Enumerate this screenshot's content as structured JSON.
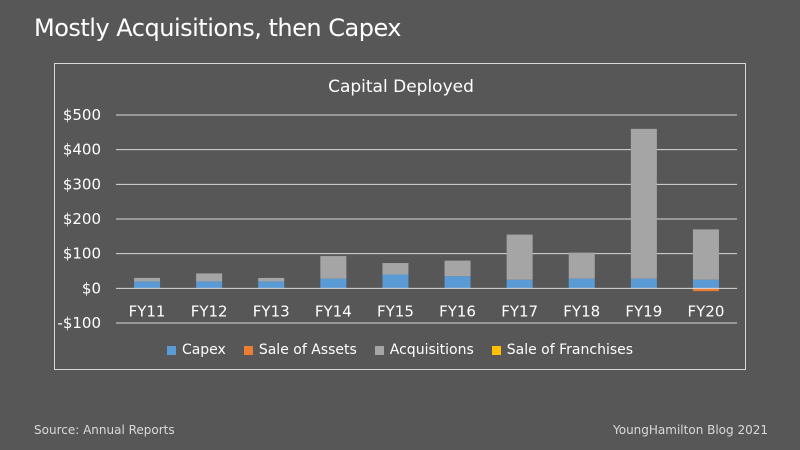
{
  "slide": {
    "title": "Mostly Acquisitions, then Capex",
    "source": "Source: Annual Reports",
    "credit": "YoungHamilton Blog 2021"
  },
  "chart_data": {
    "type": "bar",
    "stacked": true,
    "title": "Capital Deployed",
    "xlabel": "",
    "ylabel": "",
    "ylim": [
      -100,
      500
    ],
    "yticks": [
      -100,
      0,
      100,
      200,
      300,
      400,
      500
    ],
    "ytick_labels": [
      "-$100",
      "$0",
      "$100",
      "$200",
      "$300",
      "$400",
      "$500"
    ],
    "grid": true,
    "legend_position": "bottom",
    "categories": [
      "FY11",
      "FY12",
      "FY13",
      "FY14",
      "FY15",
      "FY16",
      "FY17",
      "FY18",
      "FY19",
      "FY20"
    ],
    "series": [
      {
        "name": "Capex",
        "color": "#5b9bd5",
        "values": [
          20,
          20,
          20,
          28,
          40,
          35,
          25,
          28,
          28,
          25
        ]
      },
      {
        "name": "Sale of Assets",
        "color": "#ed7d31",
        "values": [
          0,
          0,
          0,
          0,
          0,
          0,
          0,
          0,
          0,
          -8
        ]
      },
      {
        "name": "Acquisitions",
        "color": "#a5a5a5",
        "values": [
          10,
          23,
          10,
          65,
          33,
          45,
          130,
          75,
          432,
          145
        ]
      },
      {
        "name": "Sale of Franchises",
        "color": "#ffc000",
        "values": [
          0,
          0,
          0,
          0,
          0,
          0,
          0,
          0,
          0,
          0
        ]
      }
    ]
  }
}
